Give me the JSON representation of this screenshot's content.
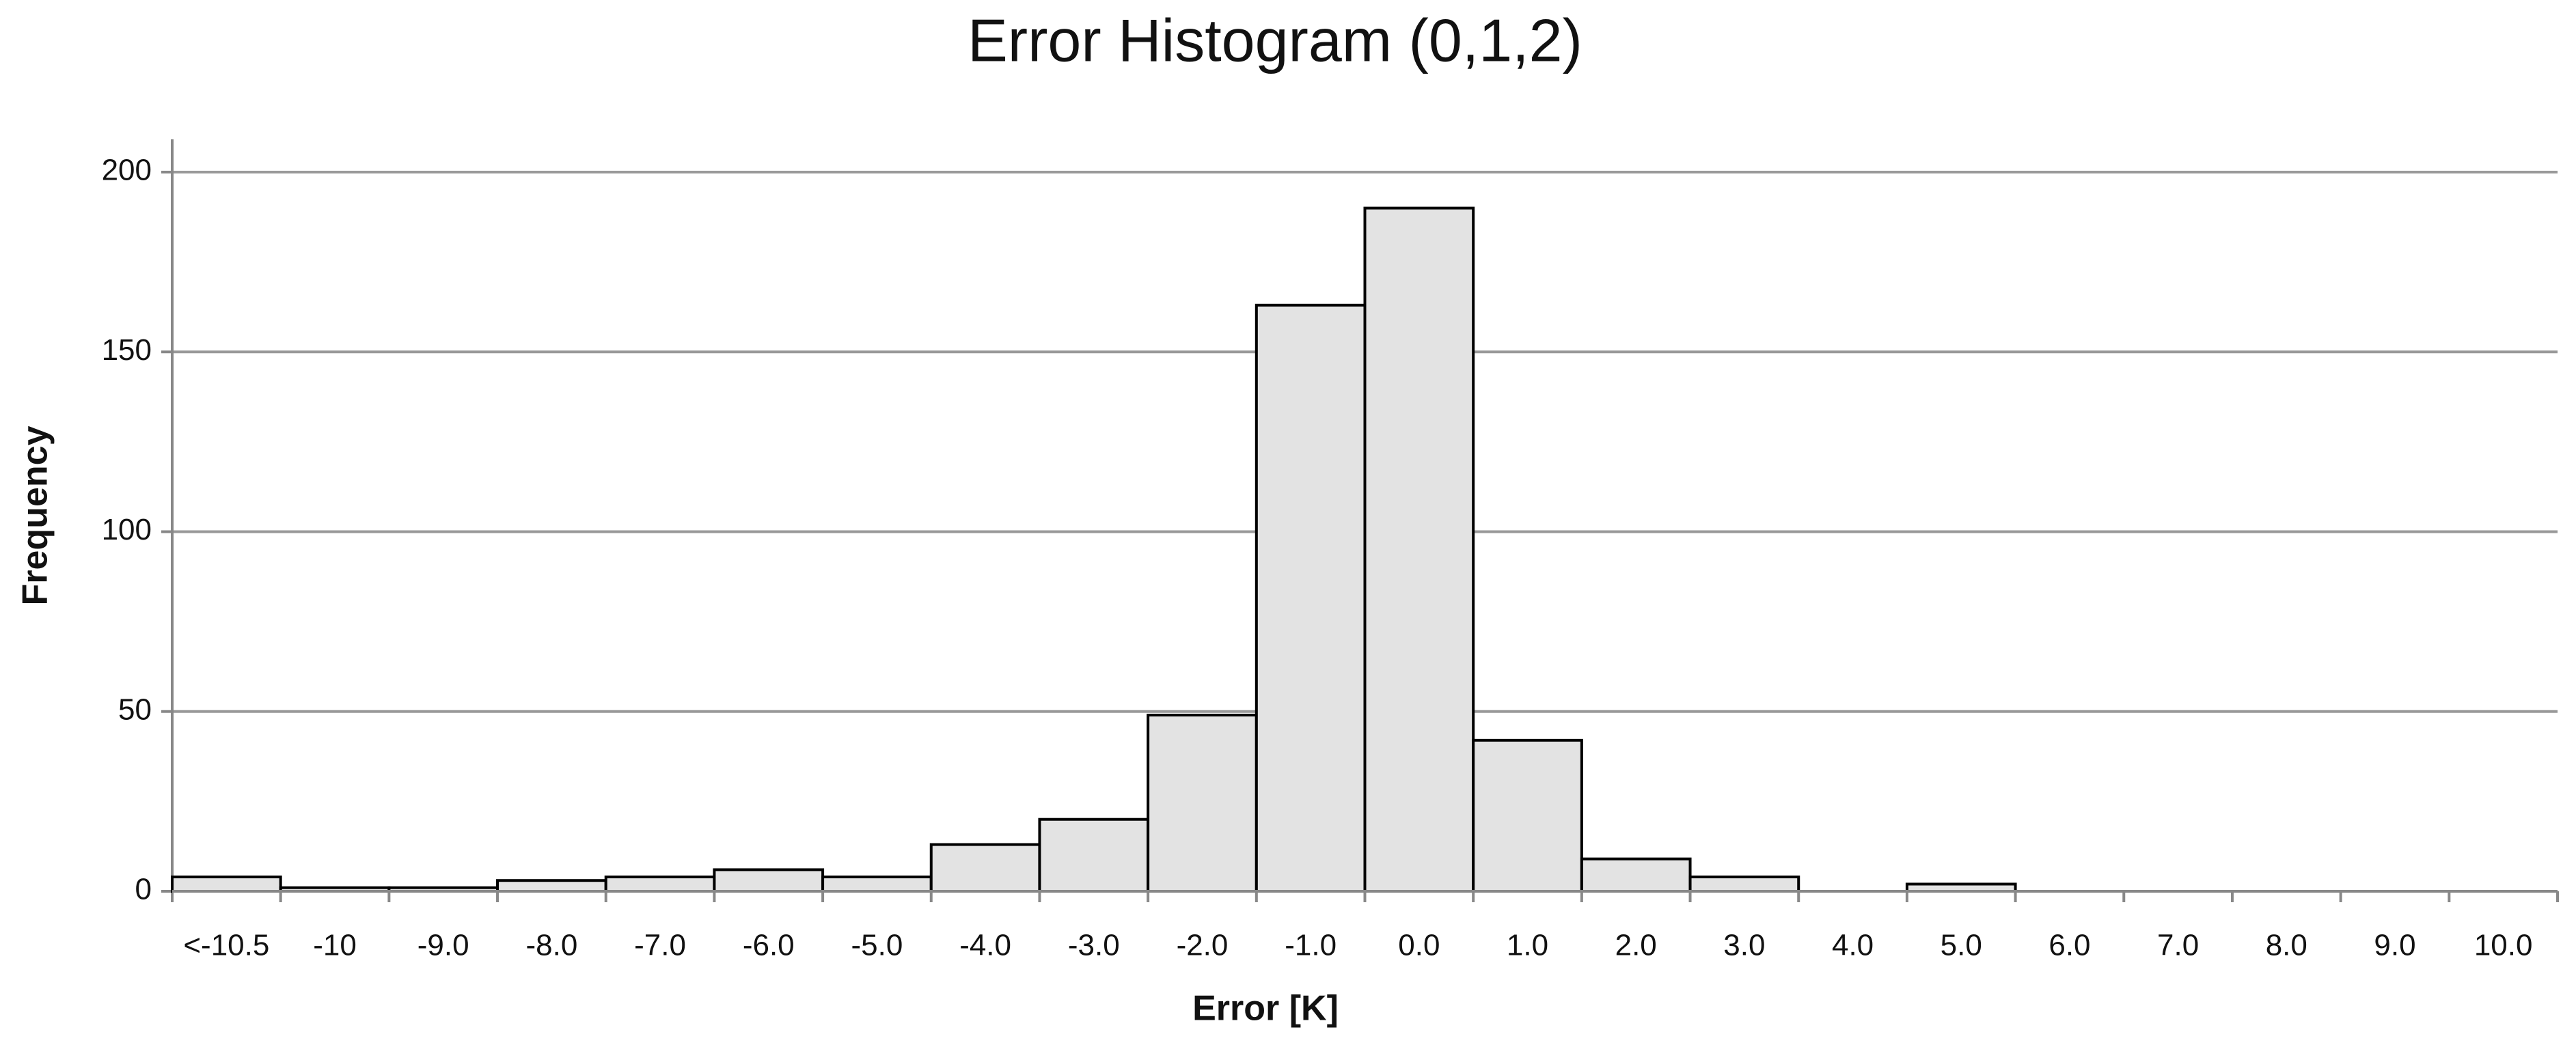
{
  "chart_data": {
    "type": "bar",
    "title": "Error Histogram (0,1,2)",
    "x_label": "Error [K]",
    "y_label": "Frequency",
    "categories": [
      "<-10.5",
      "-10",
      "-9.0",
      "-8.0",
      "-7.0",
      "-6.0",
      "-5.0",
      "-4.0",
      "-3.0",
      "-2.0",
      "-1.0",
      "0.0",
      "1.0",
      "2.0",
      "3.0",
      "4.0",
      "5.0",
      "6.0",
      "7.0",
      "8.0",
      "9.0",
      "10.0"
    ],
    "values": [
      4,
      1,
      1,
      3,
      4,
      6,
      4,
      13,
      20,
      49,
      163,
      190,
      42,
      9,
      4,
      0,
      2,
      0,
      0,
      0,
      0,
      0
    ],
    "color": "#e3e3e3",
    "ylim": [
      0,
      200
    ],
    "yticks": [
      0,
      50,
      100,
      150,
      200
    ],
    "grid": true
  }
}
